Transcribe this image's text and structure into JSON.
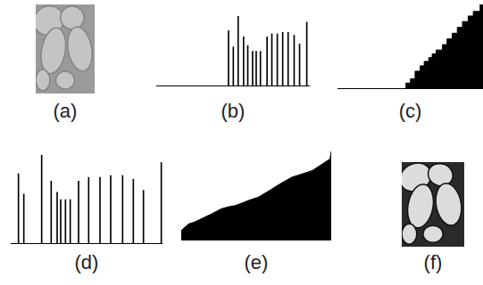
{
  "chart_data": [
    {
      "type": "bar",
      "title": "(b)",
      "color": "#000000",
      "tick_labels": false,
      "grid": false,
      "x": [
        120,
        128,
        136,
        145,
        152,
        160,
        166,
        173,
        184,
        192,
        201,
        210,
        219,
        229,
        238,
        250
      ],
      "values": [
        38,
        27,
        48,
        34,
        28,
        24,
        24,
        24,
        34,
        36,
        36,
        37,
        37,
        35,
        29,
        44
      ],
      "xlim": [
        0,
        255
      ],
      "ylim": [
        0,
        50
      ]
    },
    {
      "type": "area",
      "title": "(c)",
      "color": "#000000",
      "tick_labels": false,
      "grid": false,
      "line_style": "steps",
      "x": [
        0,
        120,
        128,
        136,
        145,
        152,
        160,
        166,
        173,
        184,
        192,
        201,
        210,
        219,
        229,
        238,
        250,
        255
      ],
      "values": [
        0,
        38,
        65,
        113,
        147,
        175,
        199,
        223,
        247,
        281,
        317,
        353,
        390,
        427,
        462,
        491,
        535,
        535
      ],
      "xlim": [
        0,
        255
      ],
      "ylim": [
        0,
        535
      ]
    },
    {
      "type": "bar",
      "title": "(d)",
      "color": "#000000",
      "tick_labels": false,
      "grid": false,
      "x": [
        13,
        22,
        52,
        68,
        78,
        84,
        92,
        100,
        114,
        131,
        150,
        168,
        188,
        206,
        223,
        253
      ],
      "values": [
        38,
        27,
        48,
        34,
        28,
        24,
        24,
        24,
        34,
        36,
        36,
        37,
        37,
        35,
        29,
        44
      ],
      "xlim": [
        0,
        255
      ],
      "ylim": [
        0,
        50
      ]
    },
    {
      "type": "area",
      "title": "(e)",
      "color": "#000000",
      "tick_labels": false,
      "grid": false,
      "line_style": "solid",
      "x": [
        0,
        13,
        22,
        52,
        68,
        78,
        84,
        92,
        100,
        114,
        131,
        150,
        168,
        188,
        206,
        223,
        253,
        255
      ],
      "values": [
        60,
        100,
        110,
        160,
        190,
        200,
        205,
        210,
        220,
        240,
        260,
        300,
        340,
        380,
        400,
        420,
        490,
        535
      ],
      "xlim": [
        0,
        255
      ],
      "ylim": [
        0,
        535
      ]
    }
  ],
  "images": [
    {
      "title": "(a)"
    },
    {
      "title": "(f)"
    }
  ]
}
